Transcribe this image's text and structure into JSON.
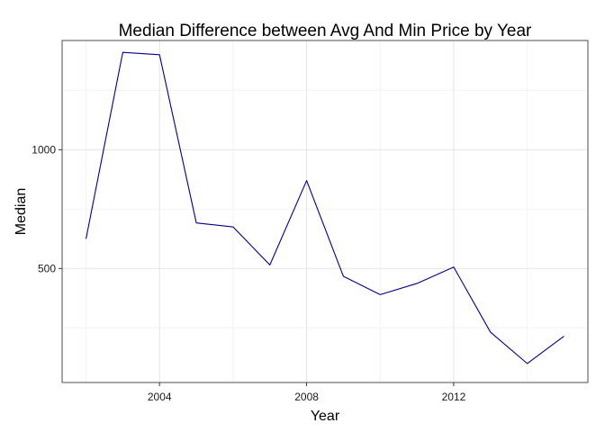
{
  "chart_data": {
    "type": "line",
    "title": "Median Difference between Avg And Min Price by Year",
    "xlabel": "Year",
    "ylabel": "Median",
    "xlim": [
      2001.35,
      2015.65
    ],
    "ylim": [
      20,
      1460
    ],
    "x_ticks": [
      2004,
      2008,
      2012
    ],
    "x_tick_labels": [
      "2004",
      "2008",
      "2012"
    ],
    "y_ticks": [
      500,
      1000
    ],
    "y_tick_labels": [
      "500",
      "1000"
    ],
    "grid": true,
    "series": [
      {
        "color": "#00008b",
        "x": [
          2002,
          2003,
          2004,
          2005,
          2006,
          2007,
          2008,
          2009,
          2010,
          2011,
          2012,
          2013,
          2014,
          2015
        ],
        "y": [
          625,
          1410,
          1400,
          692,
          675,
          515,
          870,
          467,
          390,
          437,
          506,
          232,
          100,
          215
        ]
      }
    ]
  }
}
